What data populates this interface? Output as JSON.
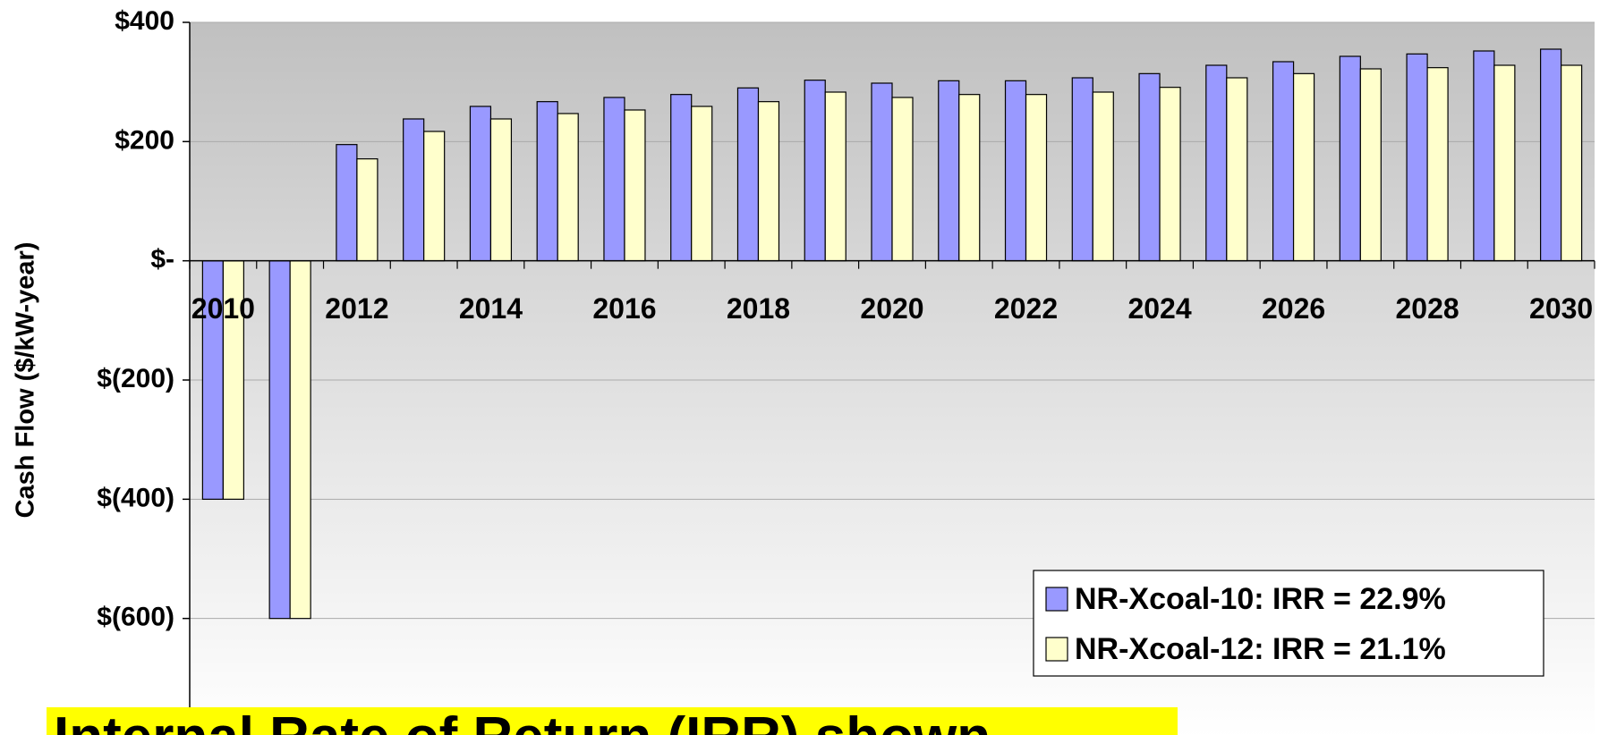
{
  "chart_data": {
    "type": "bar",
    "y_label": "Cash Flow ($/kW-year)",
    "annotation": "Internal Rate of Return (IRR) shown",
    "categories": [
      "2010",
      null,
      "2012",
      null,
      "2014",
      null,
      "2016",
      null,
      "2018",
      null,
      "2020",
      null,
      "2022",
      null,
      "2024",
      null,
      "2026",
      null,
      "2028",
      null,
      "2030"
    ],
    "series": [
      {
        "name": "NR-Xcoal-10: IRR = 22.9%",
        "color": "#9999ff",
        "values": [
          -400,
          -600,
          195,
          238,
          259,
          267,
          274,
          279,
          290,
          303,
          298,
          302,
          302,
          307,
          314,
          328,
          334,
          343,
          347,
          352,
          355
        ]
      },
      {
        "name": "NR-Xcoal-12: IRR = 21.1%",
        "color": "#ffffcc",
        "values": [
          -400,
          -600,
          171,
          217,
          238,
          247,
          253,
          259,
          267,
          283,
          274,
          279,
          279,
          283,
          291,
          307,
          314,
          322,
          324,
          328,
          328
        ]
      }
    ],
    "ylim": [
      -800,
      400
    ],
    "yticks": [
      {
        "value": 400,
        "label": "$400"
      },
      {
        "value": 200,
        "label": "$200"
      },
      {
        "value": 0,
        "label": "$-"
      },
      {
        "value": -200,
        "label": "$(200)"
      },
      {
        "value": -400,
        "label": "$(400)"
      },
      {
        "value": -600,
        "label": "$(600)"
      }
    ],
    "grid": true,
    "legend": "lower right"
  }
}
